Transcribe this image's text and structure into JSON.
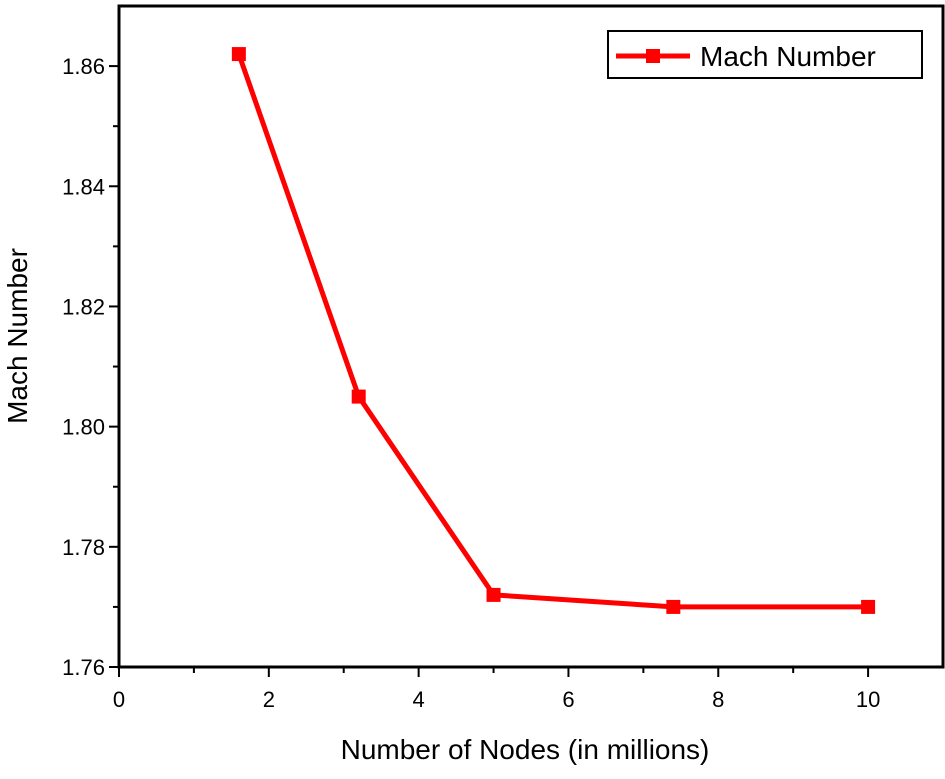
{
  "chart_data": {
    "type": "line",
    "title": "",
    "xlabel": "Number of Nodes (in millions)",
    "ylabel": "Mach Number",
    "xlim": [
      0,
      11
    ],
    "ylim": [
      1.76,
      1.87
    ],
    "x_ticks": [
      0,
      2,
      4,
      6,
      8,
      10
    ],
    "y_ticks": [
      1.76,
      1.78,
      1.8,
      1.82,
      1.84,
      1.86
    ],
    "x_tick_labels": [
      "0",
      "2",
      "4",
      "6",
      "8",
      "10"
    ],
    "y_tick_labels": [
      "1.76",
      "1.78",
      "1.80",
      "1.82",
      "1.84",
      "1.86"
    ],
    "grid": false,
    "legend_position": "top-right",
    "series": [
      {
        "name": "Mach Number",
        "color": "#ff0000",
        "marker": "square",
        "x": [
          1.6,
          3.2,
          5.0,
          7.4,
          10.0
        ],
        "y": [
          1.862,
          1.805,
          1.772,
          1.77,
          1.77
        ]
      }
    ]
  }
}
